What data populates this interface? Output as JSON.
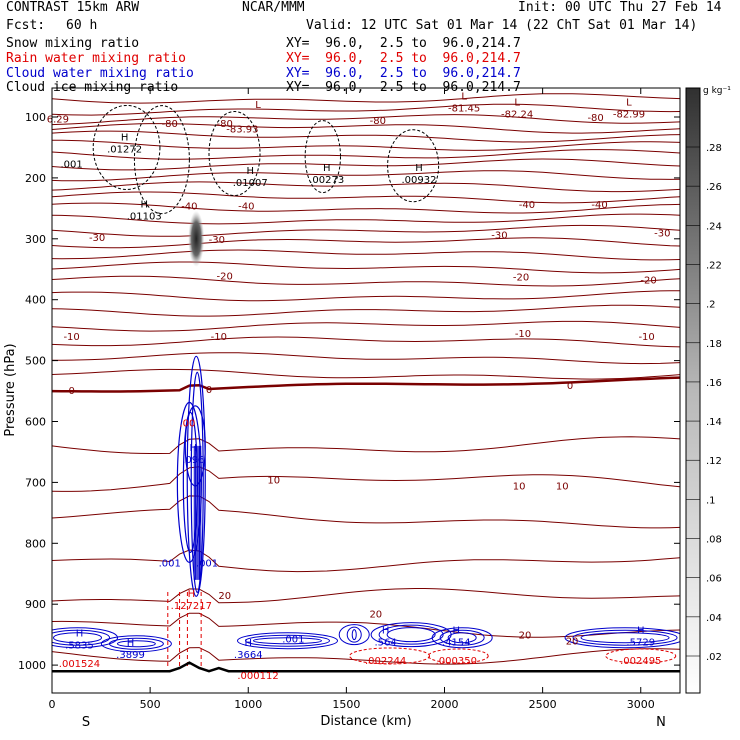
{
  "header": {
    "title": "CONTRAST 15km ARW",
    "center": "NCAR/MMM",
    "init": "Init: 00 UTC Thu 27 Feb 14",
    "fcst_label": "Fcst:",
    "fcst_value": "60 h",
    "valid": "Valid: 12 UTC Sat 01 Mar 14 (22 ChT Sat 01 Mar 14)"
  },
  "legend": [
    {
      "label": "Snow mixing ratio",
      "xy": "XY=  96.0,  2.5 to  96.0,214.7",
      "color": "#000000"
    },
    {
      "label": "Rain water mixing ratio",
      "xy": "XY=  96.0,  2.5 to  96.0,214.7",
      "color": "#e00000"
    },
    {
      "label": "Cloud water mixing ratio",
      "xy": "XY=  96.0,  2.5 to  96.0,214.7",
      "color": "#0000cc"
    },
    {
      "label": "Cloud ice mixing ratio",
      "xy": "XY=  96.0,  2.5 to  96.0,214.7",
      "color": "#000000"
    }
  ],
  "chart_data": {
    "type": "cross-section",
    "xlabel": "Distance (km)",
    "ylabel": "Pressure (hPa)",
    "xlim": [
      0,
      3200
    ],
    "ylim": [
      1030,
      60
    ],
    "x_ticks": [
      0,
      500,
      1000,
      1500,
      2000,
      2500,
      3000
    ],
    "y_ticks": [
      100,
      200,
      300,
      400,
      500,
      600,
      700,
      800,
      900,
      1000
    ],
    "endpoints": {
      "left": "S",
      "right": "N"
    },
    "colorbar": {
      "units": "g kg⁻¹",
      "ticks": [
        ".02",
        ".04",
        ".06",
        ".08",
        ".1",
        ".12",
        ".14",
        ".16",
        ".18",
        ".2",
        ".22",
        ".24",
        ".26",
        ".28"
      ]
    },
    "temperature_labels": [
      {
        "text": "-80",
        "x": 600,
        "p": 110
      },
      {
        "text": "-80",
        "x": 880,
        "p": 110
      },
      {
        "text": "-80",
        "x": 1660,
        "p": 105
      },
      {
        "text": "-80",
        "x": 2770,
        "p": 100
      },
      {
        "text": "-40",
        "x": 700,
        "p": 245
      },
      {
        "text": "-40",
        "x": 990,
        "p": 245
      },
      {
        "text": "-40",
        "x": 2420,
        "p": 243
      },
      {
        "text": "-40",
        "x": 2790,
        "p": 243
      },
      {
        "text": "-30",
        "x": 230,
        "p": 297
      },
      {
        "text": "-30",
        "x": 840,
        "p": 300
      },
      {
        "text": "-30",
        "x": 2280,
        "p": 293
      },
      {
        "text": "-30",
        "x": 3110,
        "p": 290
      },
      {
        "text": "-20",
        "x": 880,
        "p": 360
      },
      {
        "text": "-20",
        "x": 2390,
        "p": 362
      },
      {
        "text": "-20",
        "x": 3040,
        "p": 367
      },
      {
        "text": "-10",
        "x": 100,
        "p": 460
      },
      {
        "text": "-10",
        "x": 850,
        "p": 460
      },
      {
        "text": "-10",
        "x": 2400,
        "p": 455
      },
      {
        "text": "-10",
        "x": 3030,
        "p": 460
      },
      {
        "text": "0",
        "x": 100,
        "p": 548
      },
      {
        "text": "0",
        "x": 800,
        "p": 547
      },
      {
        "text": "0",
        "x": 2640,
        "p": 540
      },
      {
        "text": "10",
        "x": 1130,
        "p": 695
      },
      {
        "text": "10",
        "x": 2380,
        "p": 705
      },
      {
        "text": "10",
        "x": 2600,
        "p": 705
      },
      {
        "text": "20",
        "x": 880,
        "p": 885
      },
      {
        "text": "20",
        "x": 1650,
        "p": 915
      },
      {
        "text": "20",
        "x": 2410,
        "p": 950
      },
      {
        "text": "20",
        "x": 2650,
        "p": 960
      }
    ],
    "extrema": [
      {
        "mark": "",
        "value": "-83.93",
        "x": 970,
        "p": 112,
        "color": "#7a0000"
      },
      {
        "mark": "L",
        "value": "",
        "x": 1050,
        "p": 92,
        "color": "#7a0000"
      },
      {
        "mark": "L",
        "value": "-81.45",
        "x": 2100,
        "p": 78,
        "color": "#7a0000"
      },
      {
        "mark": "L",
        "value": "-82.24",
        "x": 2370,
        "p": 88,
        "color": "#7a0000"
      },
      {
        "mark": "L",
        "value": "-82.99",
        "x": 2940,
        "p": 88,
        "color": "#7a0000"
      },
      {
        "mark": "",
        "value": "6.29",
        "x": 30,
        "p": 96,
        "color": "#7a0000"
      },
      {
        "mark": "H",
        "value": ".01272",
        "x": 370,
        "p": 145,
        "color": "#000000"
      },
      {
        "mark": "",
        "value": ".001",
        "x": 100,
        "p": 170,
        "color": "#000000"
      },
      {
        "mark": "H",
        "value": ".01007",
        "x": 1010,
        "p": 200,
        "color": "#000000"
      },
      {
        "mark": "H",
        "value": ".00273",
        "x": 1400,
        "p": 195,
        "color": "#000000"
      },
      {
        "mark": "H",
        "value": ".00932",
        "x": 1870,
        "p": 195,
        "color": "#000000"
      },
      {
        "mark": "H",
        "value": ".01103",
        "x": 470,
        "p": 255,
        "color": "#000000"
      },
      {
        "mark": "H",
        "value": ".096",
        "x": 720,
        "p": 655,
        "color": "#0000cc"
      },
      {
        "mark": "",
        "value": ".00",
        "x": 690,
        "p": 595,
        "color": "#e00000"
      },
      {
        "mark": "",
        "value": ".001",
        "x": 600,
        "p": 825,
        "color": "#0000cc"
      },
      {
        "mark": "",
        "value": ".001",
        "x": 790,
        "p": 825,
        "color": "#0000cc"
      },
      {
        "mark": "H",
        "value": ".127217",
        "x": 710,
        "p": 895,
        "color": "#e00000"
      },
      {
        "mark": "H",
        "value": ".5835",
        "x": 140,
        "p": 960,
        "color": "#0000cc"
      },
      {
        "mark": "",
        "value": ".001524",
        "x": 140,
        "p": 990,
        "color": "#e00000"
      },
      {
        "mark": "H",
        "value": ".3899",
        "x": 400,
        "p": 975,
        "color": "#0000cc"
      },
      {
        "mark": "H",
        "value": ".3664",
        "x": 1000,
        "p": 975,
        "color": "#0000cc"
      },
      {
        "mark": "",
        "value": ".000112",
        "x": 1050,
        "p": 1010,
        "color": "#e00000"
      },
      {
        "mark": "",
        "value": ".001",
        "x": 1230,
        "p": 950,
        "color": "#0000cc"
      },
      {
        "mark": "H",
        "value": ".564",
        "x": 1700,
        "p": 955,
        "color": "#0000cc"
      },
      {
        "mark": "",
        "value": ".002244",
        "x": 1700,
        "p": 985,
        "color": "#e00000"
      },
      {
        "mark": "H",
        "value": ".4154",
        "x": 2060,
        "p": 955,
        "color": "#0000cc"
      },
      {
        "mark": "",
        "value": ".000350",
        "x": 2060,
        "p": 985,
        "color": "#e00000"
      },
      {
        "mark": "H",
        "value": ".5729",
        "x": 3000,
        "p": 955,
        "color": "#0000cc"
      },
      {
        "mark": "",
        "value": ".002495",
        "x": 3000,
        "p": 985,
        "color": "#e00000"
      }
    ]
  }
}
